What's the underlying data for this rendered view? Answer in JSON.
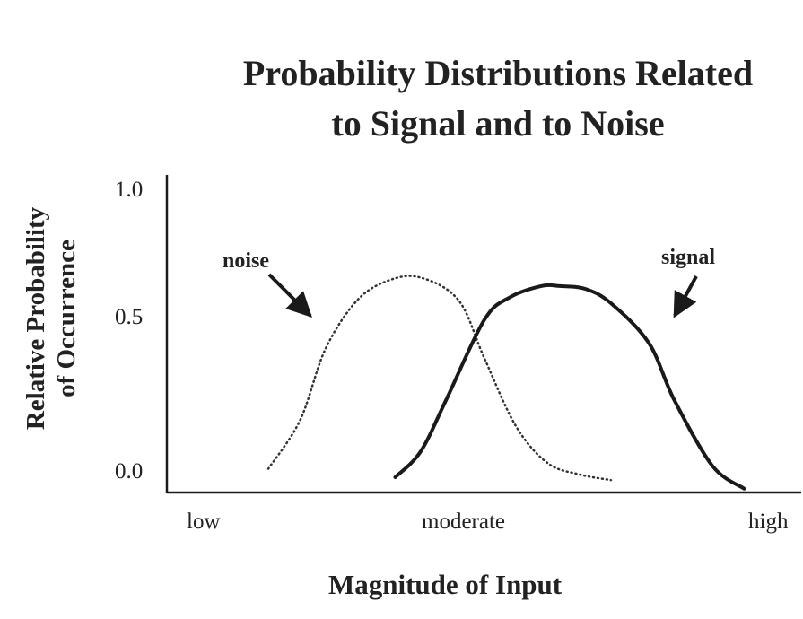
{
  "chart_data": {
    "type": "line",
    "title_lines": [
      "Probability Distributions Related",
      "to Signal and to Noise"
    ],
    "ylabel_lines": [
      "Relative Probability",
      "of Occurrence"
    ],
    "xlabel": "Magnitude of Input",
    "y_ticks": [
      "1.0",
      "0.5",
      "0.0"
    ],
    "x_ticks": [
      "low",
      "moderate",
      "high"
    ],
    "ylim": [
      0,
      1
    ],
    "grid": false,
    "legend": "none",
    "annotations": [
      {
        "text": "noise",
        "target_series": "noise"
      },
      {
        "text": "signal",
        "target_series": "signal"
      }
    ],
    "series": [
      {
        "name": "noise",
        "style": "dotted",
        "x": [
          0.16,
          0.21,
          0.25,
          0.3,
          0.35,
          0.4,
          0.46,
          0.5,
          0.55,
          0.6,
          0.65,
          0.7
        ],
        "y": [
          0.03,
          0.2,
          0.45,
          0.62,
          0.69,
          0.7,
          0.62,
          0.42,
          0.18,
          0.05,
          0.01,
          -0.01
        ]
      },
      {
        "name": "signal",
        "style": "solid",
        "x": [
          0.36,
          0.4,
          0.44,
          0.5,
          0.54,
          0.59,
          0.62,
          0.66,
          0.7,
          0.76,
          0.8,
          0.86,
          0.91
        ],
        "y": [
          0.0,
          0.09,
          0.27,
          0.55,
          0.63,
          0.67,
          0.67,
          0.66,
          0.61,
          0.47,
          0.27,
          0.04,
          -0.04
        ]
      }
    ],
    "colors": {
      "noise": "#333333",
      "signal": "#1a1a1a",
      "axis": "#1a1a1a"
    }
  }
}
